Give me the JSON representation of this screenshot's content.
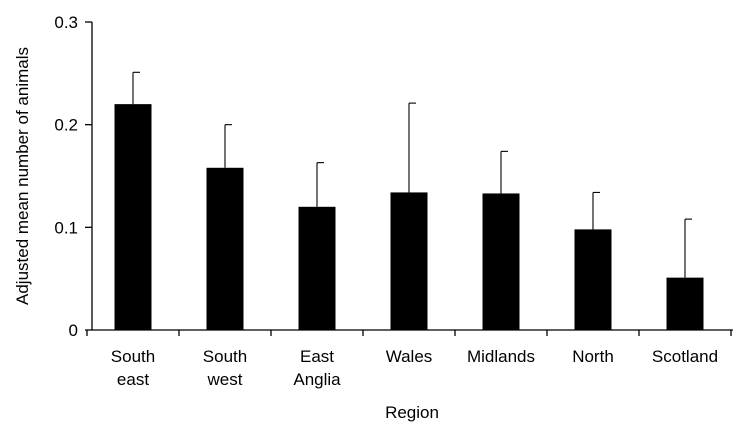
{
  "chart_data": {
    "type": "bar",
    "title": "",
    "xlabel": "Region",
    "ylabel": "Adjusted mean number of animals",
    "categories": [
      [
        "South",
        "east"
      ],
      [
        "South",
        "west"
      ],
      [
        "East",
        "Anglia"
      ],
      [
        "Wales"
      ],
      [
        "Midlands"
      ],
      [
        "North"
      ],
      [
        "Scotland"
      ]
    ],
    "values": [
      0.22,
      0.158,
      0.12,
      0.134,
      0.133,
      0.098,
      0.051
    ],
    "error_upper": [
      0.251,
      0.2,
      0.163,
      0.221,
      0.174,
      0.134,
      0.108
    ],
    "ylim": [
      0,
      0.3
    ],
    "yticks": [
      0,
      0.1,
      0.2,
      0.3
    ],
    "ytick_labels": [
      "0",
      "0.1",
      "0.2",
      "0.3"
    ],
    "grid": false,
    "legend": "none",
    "colors": {
      "bar": "#000000",
      "axis": "#000000",
      "background": "#ffffff"
    }
  }
}
